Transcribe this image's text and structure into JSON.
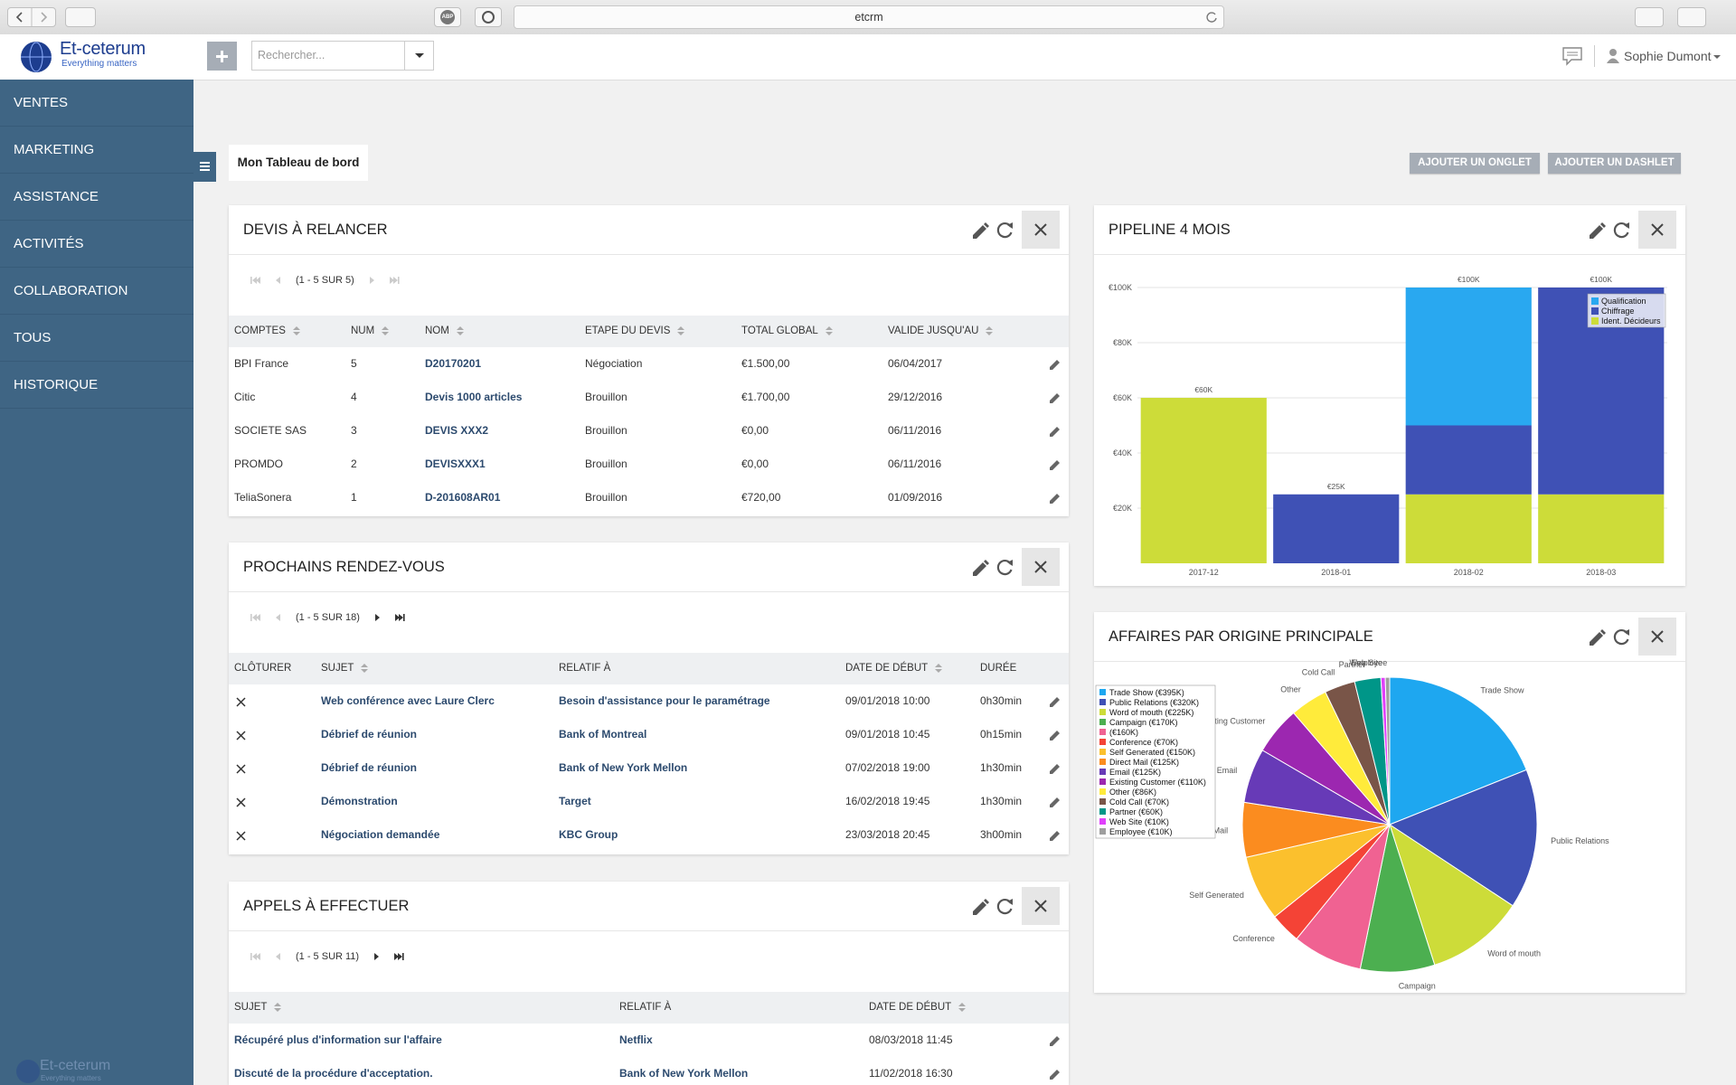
{
  "browser": {
    "url": "etcrm",
    "extension": "ABP"
  },
  "header": {
    "logo_name": "Et-ceterum",
    "logo_tagline": "Everything matters",
    "search_placeholder": "Rechercher...",
    "user": "Sophie Dumont"
  },
  "sidebar": {
    "items": [
      "VENTES",
      "MARKETING",
      "ASSISTANCE",
      "ACTIVITÉS",
      "COLLABORATION",
      "TOUS",
      "HISTORIQUE"
    ]
  },
  "tabs": {
    "active": "Mon Tableau de bord",
    "buttons": [
      "AJOUTER UN ONGLET",
      "AJOUTER UN DASHLET"
    ]
  },
  "dashlets": [
    {
      "title": "DEVIS À RELANCER",
      "pager": "(1 - 5 SUR 5)",
      "columns": [
        "COMPTES",
        "NUM",
        "NOM",
        "ETAPE DU DEVIS",
        "TOTAL GLOBAL",
        "VALIDE JUSQU'AU"
      ],
      "rows": [
        [
          "BPI France",
          "5",
          "D20170201",
          "Négociation",
          "€1.500,00",
          "06/04/2017"
        ],
        [
          "Citic",
          "4",
          "Devis 1000 articles",
          "Brouillon",
          "€1.700,00",
          "29/12/2016"
        ],
        [
          "SOCIETE SAS",
          "3",
          "DEVIS XXX2",
          "Brouillon",
          "€0,00",
          "06/11/2016"
        ],
        [
          "PROMDO",
          "2",
          "DEVISXXX1",
          "Brouillon",
          "€0,00",
          "06/11/2016"
        ],
        [
          "TeliaSonera",
          "1",
          "D-201608AR01",
          "Brouillon",
          "€720,00",
          "01/09/2016"
        ]
      ]
    },
    {
      "title": "PROCHAINS RENDEZ-VOUS",
      "pager": "(1 - 5 SUR 18)",
      "columns": [
        "CLÔTURER",
        "SUJET",
        "RELATIF À",
        "DATE DE DÉBUT",
        "DURÉE"
      ],
      "rows": [
        [
          "Web conférence avec Laure Clerc",
          "Besoin d'assistance pour le paramétrage",
          "09/01/2018 10:00",
          "0h30min"
        ],
        [
          "Débrief de réunion",
          "Bank of Montreal",
          "09/01/2018 10:45",
          "0h15min"
        ],
        [
          "Débrief de réunion",
          "Bank of New York Mellon",
          "07/02/2018 19:00",
          "1h30min"
        ],
        [
          "Démonstration",
          "Target",
          "16/02/2018 19:45",
          "1h30min"
        ],
        [
          "Négociation demandée",
          "KBC Group",
          "23/03/2018 20:45",
          "3h00min"
        ]
      ]
    },
    {
      "title": "APPELS À EFFECTUER",
      "pager": "(1 - 5 SUR 11)",
      "columns": [
        "SUJET",
        "RELATIF À",
        "DATE DE DÉBUT"
      ],
      "rows": [
        [
          "Récupéré plus d'information sur l'affaire",
          "Netflix",
          "08/03/2018 11:45"
        ],
        [
          "Discuté de la procédure d'acceptation.",
          "Bank of New York Mellon",
          "11/02/2018 16:30"
        ]
      ]
    }
  ],
  "chart_data": [
    {
      "type": "bar",
      "stacked": true,
      "title": "PIPELINE 4 MOIS",
      "categories": [
        "2017-12",
        "2018-01",
        "2018-02",
        "2018-03"
      ],
      "series": [
        {
          "name": "Qualification",
          "color": "#29a8f0",
          "values": [
            0,
            0,
            50000,
            0
          ]
        },
        {
          "name": "Chiffrage",
          "color": "#3f51b5",
          "values": [
            0,
            25000,
            25000,
            75000
          ]
        },
        {
          "name": "Ident. Décideurs",
          "color": "#cddc39",
          "values": [
            60000,
            0,
            25000,
            25000
          ]
        }
      ],
      "total_labels": [
        "€60K",
        "€25K",
        "€100K",
        "€100K"
      ],
      "ylim": [
        0,
        110000
      ],
      "yticks": [
        {
          "value": 20000,
          "label": "€20K"
        },
        {
          "value": 40000,
          "label": "€40K"
        },
        {
          "value": 60000,
          "label": "€60K"
        },
        {
          "value": 80000,
          "label": "€80K"
        },
        {
          "value": 100000,
          "label": "€100K"
        }
      ],
      "grid": true,
      "legend": "top-right"
    },
    {
      "type": "pie",
      "title": "AFFAIRES PAR ORIGINE PRINCIPALE",
      "categories": [
        "Trade Show",
        "Public Relations",
        "Word of mouth",
        "Campaign",
        null,
        "Conference",
        "Self Generated",
        "Direct Mail",
        "Email",
        "Existing Customer",
        "Other",
        "Cold Call",
        "Partner",
        "Web Site",
        "Employee"
      ],
      "values": [
        395000,
        320000,
        225000,
        170000,
        160000,
        70000,
        150000,
        125000,
        125000,
        110000,
        86000,
        70000,
        60000,
        10000,
        10000
      ],
      "legend_labels": [
        "Trade Show (€395K)",
        "Public Relations (€320K)",
        "Word of mouth (€225K)",
        "Campaign (€170K)",
        "(€160K)",
        "Conference (€70K)",
        "Self Generated (€150K)",
        "Direct Mail (€125K)",
        "Email (€125K)",
        "Existing Customer (€110K)",
        "Other (€86K)",
        "Cold Call (€70K)",
        "Partner (€60K)",
        "Web Site (€10K)",
        "Employee (€10K)"
      ],
      "colors": [
        "#1ea7f0",
        "#3f51b5",
        "#cddc39",
        "#4caf50",
        "#f06292",
        "#f44336",
        "#fbc02d",
        "#fb8c1f",
        "#673ab7",
        "#9c27b0",
        "#ffeb3b",
        "#795548",
        "#009688",
        "#e040fb",
        "#9e9e9e"
      ],
      "legend": "top-left"
    }
  ]
}
